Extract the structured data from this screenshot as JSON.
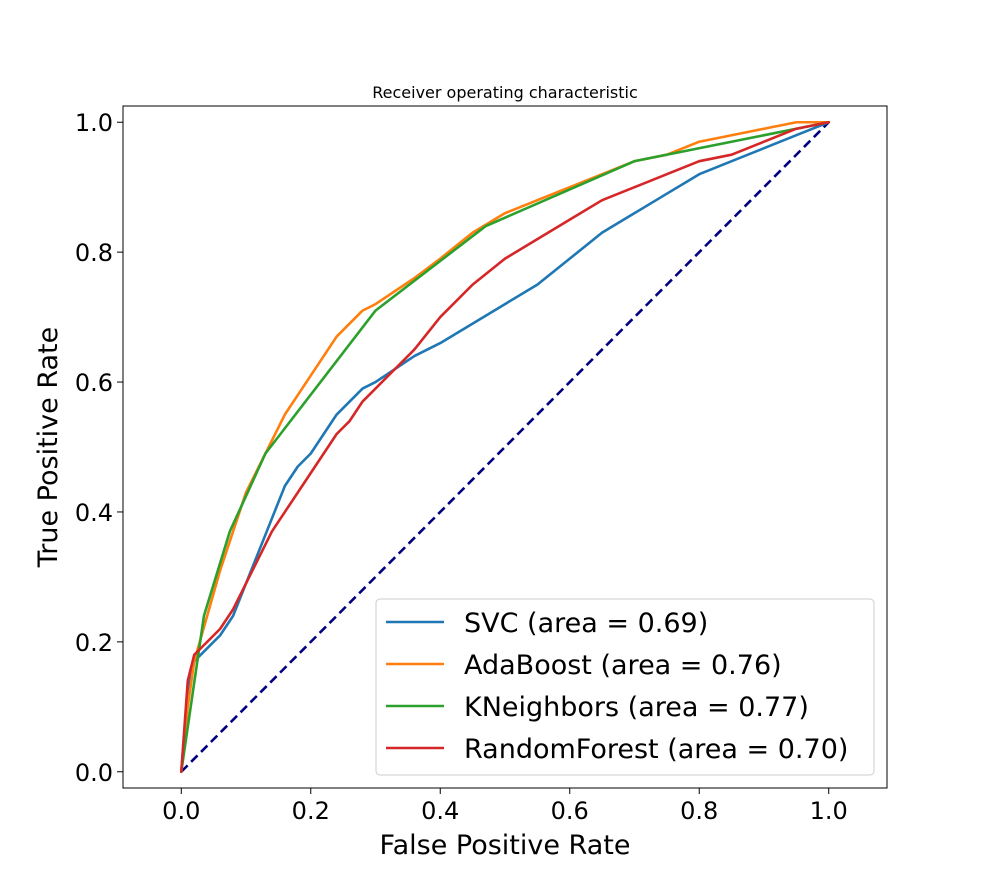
{
  "chart_data": {
    "type": "line",
    "title": "Receiver operating characteristic",
    "xlabel": "False Positive Rate",
    "ylabel": "True Positive Rate",
    "xlim": [
      -0.09,
      1.09
    ],
    "ylim": [
      -0.025,
      1.025
    ],
    "xticks": [
      0.0,
      0.2,
      0.4,
      0.6,
      0.8,
      1.0
    ],
    "yticks": [
      0.0,
      0.2,
      0.4,
      0.6,
      0.8,
      1.0
    ],
    "xtick_labels": [
      "0.0",
      "0.2",
      "0.4",
      "0.6",
      "0.8",
      "1.0"
    ],
    "ytick_labels": [
      "0.0",
      "0.2",
      "0.4",
      "0.6",
      "0.8",
      "1.0"
    ],
    "grid": false,
    "legend_position": "lower-right",
    "series": [
      {
        "name": "SVC (area = 0.69)",
        "color": "#1f77b4",
        "x": [
          0.0,
          0.005,
          0.01,
          0.02,
          0.04,
          0.06,
          0.08,
          0.1,
          0.12,
          0.14,
          0.16,
          0.18,
          0.2,
          0.22,
          0.24,
          0.26,
          0.28,
          0.3,
          0.33,
          0.36,
          0.4,
          0.45,
          0.5,
          0.55,
          0.6,
          0.65,
          0.7,
          0.75,
          0.8,
          0.85,
          0.9,
          0.95,
          1.0
        ],
        "y": [
          0.0,
          0.06,
          0.12,
          0.17,
          0.19,
          0.21,
          0.24,
          0.29,
          0.34,
          0.39,
          0.44,
          0.47,
          0.49,
          0.52,
          0.55,
          0.57,
          0.59,
          0.6,
          0.62,
          0.64,
          0.66,
          0.69,
          0.72,
          0.75,
          0.79,
          0.83,
          0.86,
          0.89,
          0.92,
          0.94,
          0.96,
          0.98,
          1.0
        ]
      },
      {
        "name": "AdaBoost (area = 0.76)",
        "color": "#ff7f0e",
        "x": [
          0.0,
          0.005,
          0.01,
          0.02,
          0.04,
          0.06,
          0.08,
          0.1,
          0.12,
          0.14,
          0.16,
          0.18,
          0.2,
          0.22,
          0.24,
          0.26,
          0.28,
          0.3,
          0.33,
          0.36,
          0.4,
          0.45,
          0.5,
          0.55,
          0.6,
          0.65,
          0.7,
          0.75,
          0.8,
          0.85,
          0.9,
          0.95,
          1.0
        ],
        "y": [
          0.0,
          0.05,
          0.1,
          0.17,
          0.24,
          0.31,
          0.37,
          0.43,
          0.47,
          0.51,
          0.55,
          0.58,
          0.61,
          0.64,
          0.67,
          0.69,
          0.71,
          0.72,
          0.74,
          0.76,
          0.79,
          0.83,
          0.86,
          0.88,
          0.9,
          0.92,
          0.94,
          0.95,
          0.97,
          0.98,
          0.99,
          1.0,
          1.0
        ]
      },
      {
        "name": "KNeighbors (area = 0.77)",
        "color": "#2ca02c",
        "x": [
          0.0,
          0.035,
          0.075,
          0.13,
          0.3,
          0.47,
          0.7,
          1.0
        ],
        "y": [
          0.0,
          0.24,
          0.37,
          0.49,
          0.71,
          0.84,
          0.94,
          1.0
        ]
      },
      {
        "name": "RandomForest (area = 0.70)",
        "color": "#d62728",
        "x": [
          0.0,
          0.005,
          0.01,
          0.02,
          0.04,
          0.06,
          0.08,
          0.1,
          0.12,
          0.14,
          0.16,
          0.18,
          0.2,
          0.22,
          0.24,
          0.26,
          0.28,
          0.3,
          0.33,
          0.36,
          0.4,
          0.45,
          0.5,
          0.55,
          0.6,
          0.65,
          0.7,
          0.75,
          0.8,
          0.85,
          0.9,
          0.95,
          1.0
        ],
        "y": [
          0.0,
          0.07,
          0.14,
          0.18,
          0.2,
          0.22,
          0.25,
          0.29,
          0.33,
          0.37,
          0.4,
          0.43,
          0.46,
          0.49,
          0.52,
          0.54,
          0.57,
          0.59,
          0.62,
          0.65,
          0.7,
          0.75,
          0.79,
          0.82,
          0.85,
          0.88,
          0.9,
          0.92,
          0.94,
          0.95,
          0.97,
          0.99,
          1.0
        ]
      }
    ],
    "reference_line": {
      "x": [
        0.0,
        1.0
      ],
      "y": [
        0.0,
        1.0
      ],
      "color": "#000080",
      "style": "dashed"
    }
  }
}
